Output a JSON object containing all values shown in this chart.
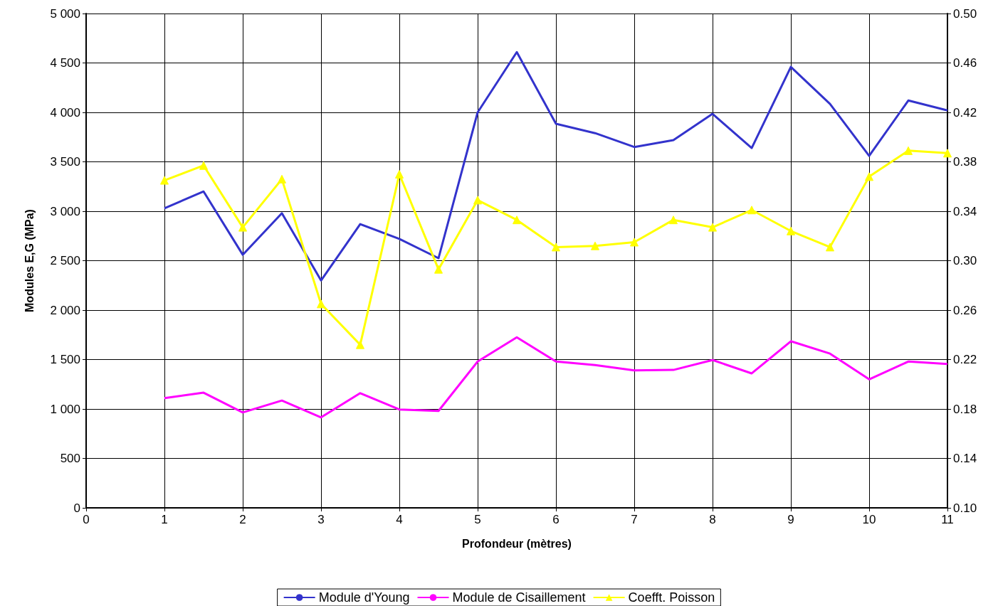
{
  "chart_data": {
    "type": "line",
    "xlabel": "Profondeur (mètres)",
    "ylabel": "Modules E,G (MPa)",
    "x": [
      1,
      1.5,
      2,
      2.5,
      3,
      3.5,
      4,
      4.5,
      5,
      5.5,
      6,
      6.5,
      7,
      7.5,
      8,
      8.5,
      9,
      9.5,
      10,
      10.5,
      11
    ],
    "series": [
      {
        "name": "Module d'Young",
        "color": "#3333cc",
        "marker": "none",
        "values": [
          3030,
          3200,
          2560,
          2980,
          2300,
          2870,
          2720,
          2525,
          4000,
          4610,
          3885,
          3790,
          3650,
          3720,
          3985,
          3640,
          4460,
          4085,
          3560,
          4120,
          4020
        ]
      },
      {
        "name": "Module de Cisaillement",
        "color": "#ff00ff",
        "marker": "none",
        "values": [
          1110,
          1165,
          965,
          1085,
          915,
          1160,
          995,
          980,
          1480,
          1725,
          1480,
          1445,
          1390,
          1395,
          1495,
          1360,
          1685,
          1560,
          1300,
          1480,
          1455
        ]
      },
      {
        "name": "Coefft. Poisson",
        "color": "#ffff00",
        "marker": "triangle",
        "axis": "y2",
        "values": [
          0.365,
          0.377,
          0.327,
          0.366,
          0.265,
          0.232,
          0.37,
          0.293,
          0.349,
          0.333,
          0.311,
          0.312,
          0.315,
          0.333,
          0.327,
          0.341,
          0.324,
          0.311,
          0.368,
          0.389,
          0.387
        ]
      }
    ],
    "xlim": [
      0,
      11
    ],
    "xticks": [
      0,
      1,
      2,
      3,
      4,
      5,
      6,
      7,
      8,
      9,
      10,
      11
    ],
    "ylim": [
      0,
      5000
    ],
    "yticks": [
      0,
      500,
      {
        "value": 1000,
        "label": "1 000"
      },
      {
        "value": 1500,
        "label": "1 500"
      },
      {
        "value": 2000,
        "label": "2 000"
      },
      {
        "value": 2500,
        "label": "2 500"
      },
      {
        "value": 3000,
        "label": "3 000"
      },
      {
        "value": 3500,
        "label": "3 500"
      },
      {
        "value": 4000,
        "label": "4 000"
      },
      {
        "value": 4500,
        "label": "4 500"
      },
      {
        "value": 5000,
        "label": "5 000"
      }
    ],
    "y2lim": [
      0.1,
      0.5
    ],
    "y2ticks": [
      {
        "value": 0.1,
        "label": "0.10"
      },
      0.14,
      0.18,
      0.22,
      0.26,
      {
        "value": 0.3,
        "label": "0.30"
      },
      0.34,
      0.38,
      0.42,
      0.46,
      {
        "value": 0.5,
        "label": "0.50"
      }
    ],
    "grid": true,
    "legend": "bottom",
    "line_style": "solid"
  }
}
